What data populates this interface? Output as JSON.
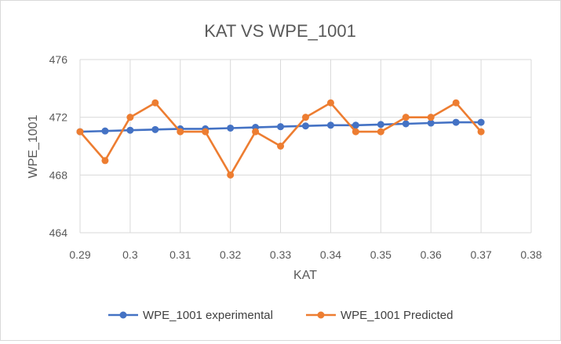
{
  "chart_data": {
    "type": "scatter",
    "title": "KAT VS WPE_1001",
    "xlabel": "KAT",
    "ylabel": "WPE_1001",
    "xlim": [
      0.29,
      0.38
    ],
    "ylim": [
      464,
      476
    ],
    "x_ticks": [
      "0.29",
      "0.3",
      "0.31",
      "0.32",
      "0.33",
      "0.34",
      "0.35",
      "0.36",
      "0.37",
      "0.38"
    ],
    "y_ticks": [
      "464",
      "468",
      "472",
      "476"
    ],
    "grid": "vertical and horizontal major gridlines",
    "legend_position": "bottom",
    "series": [
      {
        "name": "WPE_1001 experimental",
        "color": "#4472C4",
        "x": [
          0.29,
          0.295,
          0.3,
          0.305,
          0.31,
          0.315,
          0.32,
          0.325,
          0.33,
          0.335,
          0.34,
          0.345,
          0.35,
          0.355,
          0.36,
          0.365,
          0.37
        ],
        "y": [
          471.0,
          471.05,
          471.1,
          471.15,
          471.2,
          471.2,
          471.25,
          471.3,
          471.35,
          471.4,
          471.45,
          471.45,
          471.5,
          471.55,
          471.6,
          471.65,
          471.65
        ]
      },
      {
        "name": "WPE_1001 Predicted",
        "color": "#ED7D31",
        "x": [
          0.29,
          0.295,
          0.3,
          0.305,
          0.31,
          0.315,
          0.32,
          0.325,
          0.33,
          0.335,
          0.34,
          0.345,
          0.35,
          0.355,
          0.36,
          0.365,
          0.37
        ],
        "y": [
          471,
          469,
          472,
          473,
          471,
          471,
          468,
          471,
          470,
          472,
          473,
          471,
          471,
          472,
          472,
          473,
          471
        ]
      }
    ]
  }
}
